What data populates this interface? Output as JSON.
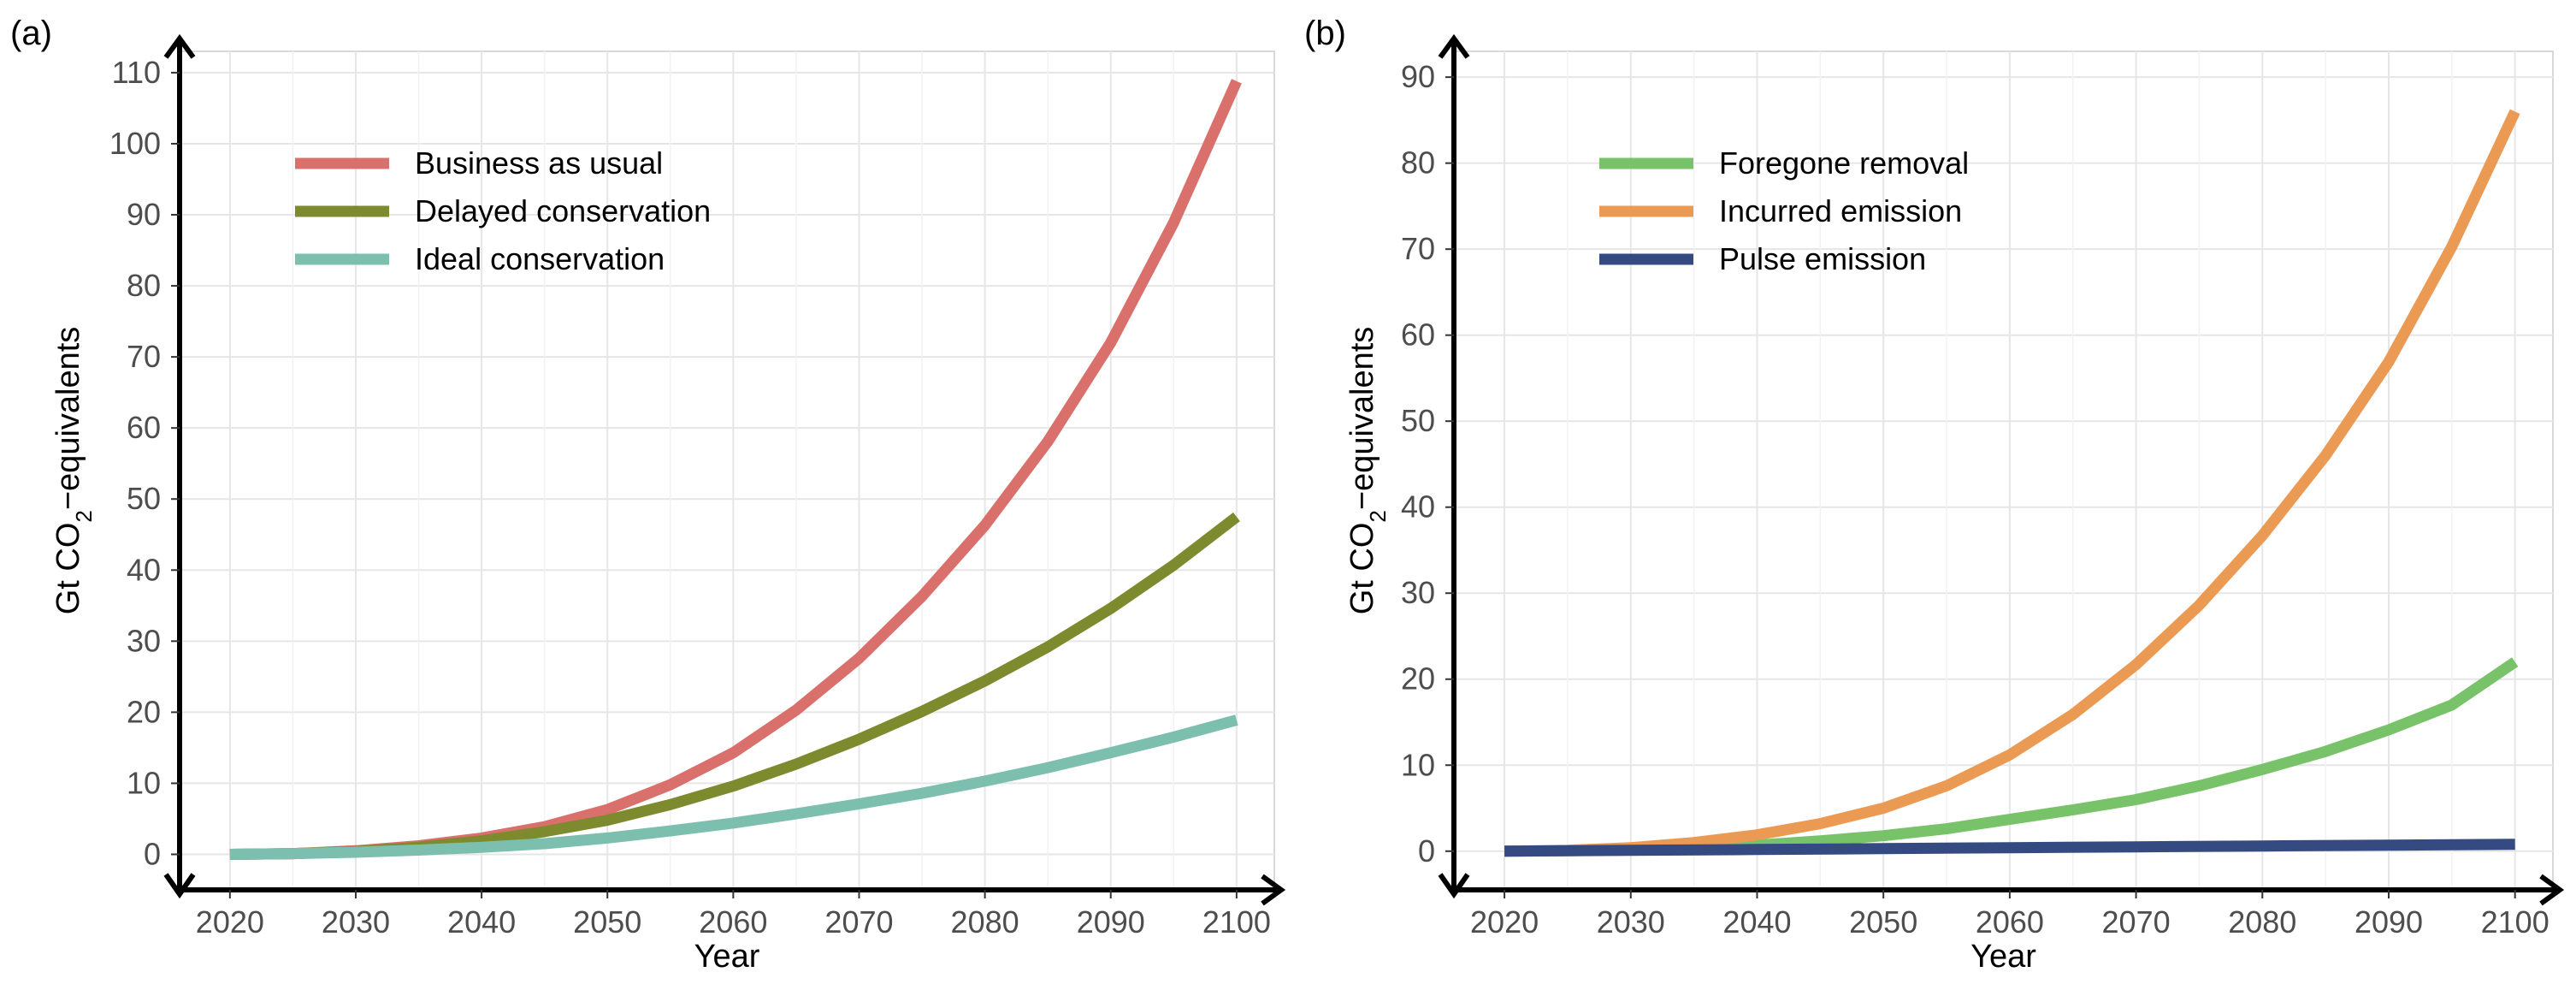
{
  "chart_data": [
    {
      "panel_label": "(a)",
      "type": "line",
      "xlabel": "Year",
      "ylabel_prefix": "Gt CO",
      "ylabel_subscript": "2",
      "ylabel_suffix": "−equivalents",
      "xlim": [
        2016,
        2103
      ],
      "ylim": [
        -5,
        113
      ],
      "x_ticks": [
        2020,
        2030,
        2040,
        2050,
        2060,
        2070,
        2080,
        2090,
        2100
      ],
      "y_ticks": [
        0,
        10,
        20,
        30,
        40,
        50,
        60,
        70,
        80,
        90,
        100,
        110
      ],
      "grid": true,
      "legend_position": "top-left",
      "series": [
        {
          "name": "Business as usual",
          "color": "#d9706b",
          "x": [
            2020,
            2025,
            2030,
            2035,
            2040,
            2045,
            2050,
            2055,
            2060,
            2065,
            2070,
            2075,
            2080,
            2085,
            2090,
            2095,
            2100
          ],
          "y": [
            0,
            0.1,
            0.5,
            1.2,
            2.3,
            3.9,
            6.3,
            9.8,
            14.3,
            20.3,
            27.6,
            36.3,
            46.3,
            58.1,
            72.0,
            88.9,
            108.8
          ]
        },
        {
          "name": "Delayed conservation",
          "color": "#7d8a2e",
          "x": [
            2020,
            2025,
            2030,
            2035,
            2040,
            2045,
            2050,
            2055,
            2060,
            2065,
            2070,
            2075,
            2080,
            2085,
            2090,
            2095,
            2100
          ],
          "y": [
            0,
            0.1,
            0.4,
            1.0,
            1.9,
            3.2,
            4.8,
            7.0,
            9.6,
            12.7,
            16.2,
            20.1,
            24.4,
            29.2,
            34.6,
            40.7,
            47.5
          ]
        },
        {
          "name": "Ideal conservation",
          "color": "#7dbfae",
          "x": [
            2020,
            2025,
            2030,
            2035,
            2040,
            2045,
            2050,
            2055,
            2060,
            2065,
            2070,
            2075,
            2080,
            2085,
            2090,
            2095,
            2100
          ],
          "y": [
            0,
            0.1,
            0.3,
            0.6,
            1.0,
            1.5,
            2.3,
            3.3,
            4.4,
            5.7,
            7.1,
            8.6,
            10.3,
            12.2,
            14.3,
            16.5,
            18.9
          ]
        }
      ]
    },
    {
      "panel_label": "(b)",
      "type": "line",
      "xlabel": "Year",
      "ylabel_prefix": "Gt CO",
      "ylabel_subscript": "2",
      "ylabel_suffix": "−equivalents",
      "xlim": [
        2016,
        2103
      ],
      "ylim": [
        -4.5,
        93
      ],
      "x_ticks": [
        2020,
        2030,
        2040,
        2050,
        2060,
        2070,
        2080,
        2090,
        2100
      ],
      "y_ticks": [
        0,
        10,
        20,
        30,
        40,
        50,
        60,
        70,
        80,
        90
      ],
      "grid": true,
      "legend_position": "top-left",
      "series": [
        {
          "name": "Foregone removal",
          "color": "#78c36a",
          "x": [
            2020,
            2025,
            2030,
            2035,
            2040,
            2045,
            2050,
            2055,
            2060,
            2065,
            2070,
            2075,
            2080,
            2085,
            2090,
            2095,
            2100
          ],
          "y": [
            0,
            0.05,
            0.15,
            0.35,
            0.7,
            1.2,
            1.8,
            2.6,
            3.7,
            4.8,
            6.0,
            7.6,
            9.5,
            11.6,
            14.1,
            17.0,
            22.0
          ]
        },
        {
          "name": "Incurred emission",
          "color": "#eb9a54",
          "x": [
            2020,
            2025,
            2030,
            2035,
            2040,
            2045,
            2050,
            2055,
            2060,
            2065,
            2070,
            2075,
            2080,
            2085,
            2090,
            2095,
            2100
          ],
          "y": [
            0,
            0.1,
            0.4,
            1.0,
            1.9,
            3.2,
            5.0,
            7.6,
            11.2,
            15.9,
            21.7,
            28.6,
            36.7,
            46.0,
            56.9,
            70.3,
            86.0
          ]
        },
        {
          "name": "Pulse emission",
          "color": "#354a80",
          "x": [
            2020,
            2030,
            2040,
            2050,
            2060,
            2070,
            2080,
            2090,
            2100
          ],
          "y": [
            0,
            0.1,
            0.2,
            0.3,
            0.4,
            0.5,
            0.6,
            0.7,
            0.8
          ]
        }
      ]
    }
  ]
}
